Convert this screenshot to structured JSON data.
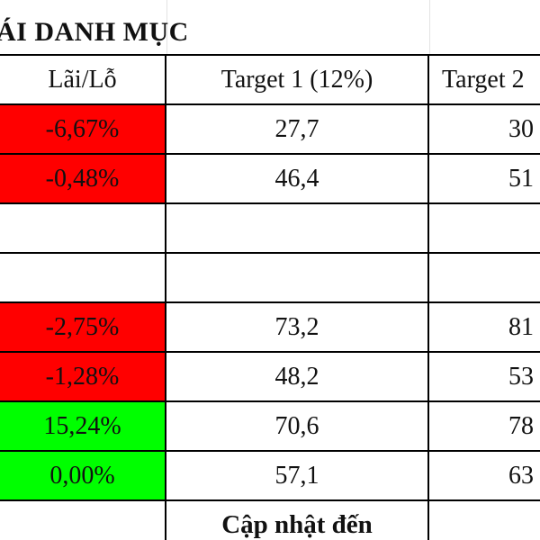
{
  "title": "ÁI DANH MỤC",
  "header": {
    "col1": "Lãi/Lỗ",
    "col2": "Target 1 (12%)",
    "col3": "Target 2"
  },
  "rows": [
    {
      "pnl": "-6,67%",
      "status": "negative",
      "target1": "27,7",
      "target2": "30"
    },
    {
      "pnl": "-0,48%",
      "status": "negative",
      "target1": "46,4",
      "target2": "51"
    },
    {
      "pnl": "",
      "status": "empty",
      "target1": "",
      "target2": ""
    },
    {
      "pnl": "",
      "status": "empty",
      "target1": "",
      "target2": ""
    },
    {
      "pnl": "-2,75%",
      "status": "negative",
      "target1": "73,2",
      "target2": "81"
    },
    {
      "pnl": "-1,28%",
      "status": "negative",
      "target1": "48,2",
      "target2": "53"
    },
    {
      "pnl": "15,24%",
      "status": "positive",
      "target1": "70,6",
      "target2": "78"
    },
    {
      "pnl": "0,00%",
      "status": "positive",
      "target1": "57,1",
      "target2": "63"
    }
  ],
  "footer": {
    "label": "Cập nhật đến"
  },
  "colors": {
    "negative": "#ff0000",
    "positive": "#00ff00",
    "grid": "#000000"
  }
}
